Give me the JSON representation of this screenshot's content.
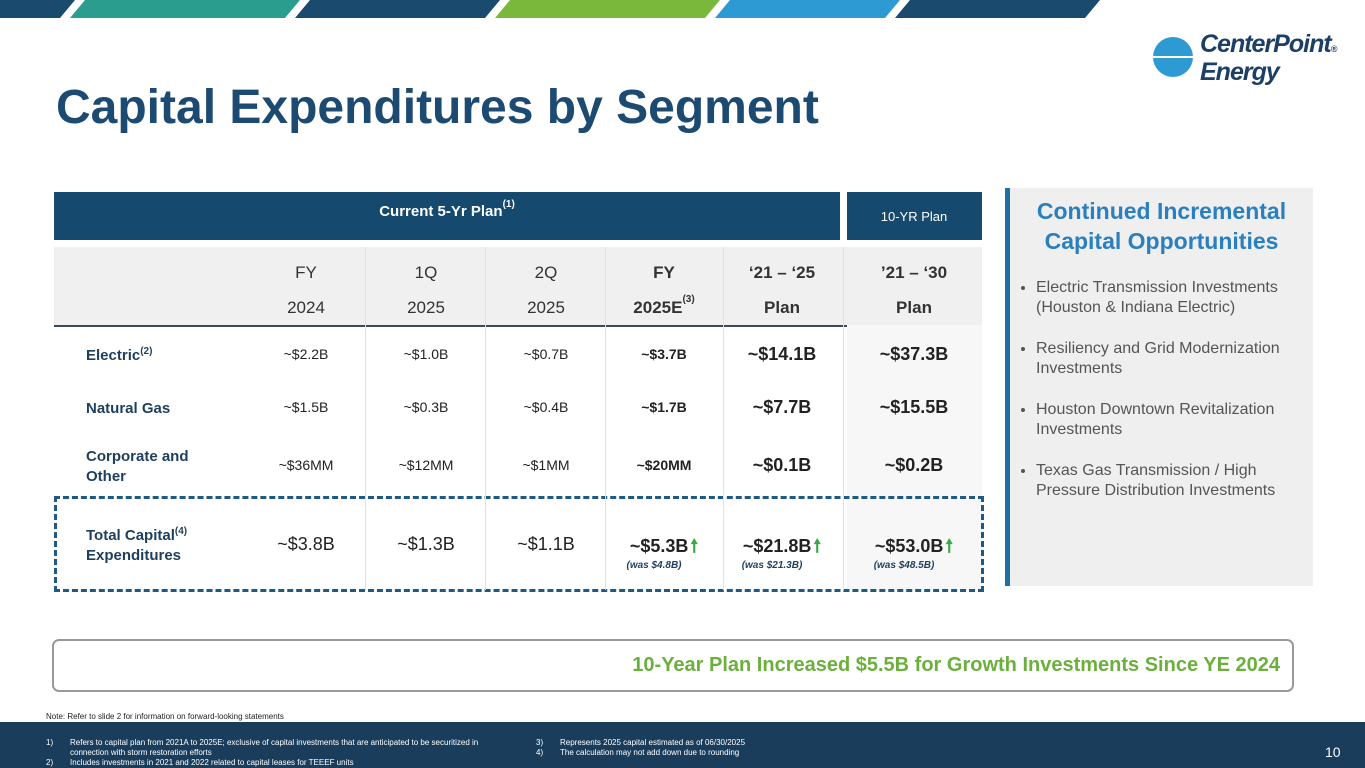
{
  "header": {
    "title": "Capital Expenditures by Segment"
  },
  "logo": {
    "line1": "CenterPoint",
    "line2": "Energy",
    "mark": "®"
  },
  "table": {
    "plan_header": {
      "text": "Current 5-Yr Plan",
      "note": "(1)"
    },
    "ten_year_header": "10-YR Plan",
    "columns": [
      {
        "line1": "FY",
        "line2": "2024"
      },
      {
        "line1": "1Q",
        "line2": "2025"
      },
      {
        "line1": "2Q",
        "line2": "2025"
      },
      {
        "line1": "FY",
        "line2": "2025E",
        "note": "(3)"
      },
      {
        "line1": "‘21 – ‘25",
        "line2": "Plan"
      },
      {
        "line1": "’21 – ‘30",
        "line2": "Plan"
      }
    ],
    "rows": [
      {
        "label": "Electric",
        "note": "(2)",
        "cells": [
          "~$2.2B",
          "~$1.0B",
          "~$0.7B",
          "~$3.7B",
          "~$14.1B",
          "~$37.3B"
        ]
      },
      {
        "label": "Natural Gas",
        "cells": [
          "~$1.5B",
          "~$0.3B",
          "~$0.4B",
          "~$1.7B",
          "~$7.7B",
          "~$15.5B"
        ]
      },
      {
        "label": "Corporate and Other",
        "cells": [
          "~$36MM",
          "~$12MM",
          "~$1MM",
          "~$20MM",
          "~$0.1B",
          "~$0.2B"
        ]
      },
      {
        "label": "Total Capital",
        "note": "(4)",
        "label2": "Expenditures",
        "cells": [
          "~$3.8B",
          "~$1.3B",
          "~$1.1B",
          "~$5.3B",
          "~$21.8B",
          "~$53.0B"
        ],
        "was": [
          null,
          null,
          null,
          "(was $4.8B)",
          "(was $21.3B)",
          "(was $48.5B)"
        ]
      }
    ]
  },
  "panel": {
    "title": "Continued Incremental Capital Opportunities",
    "bullets": [
      "Electric Transmission Investments (Houston & Indiana Electric)",
      "Resiliency and Grid Modernization Investments",
      "Houston Downtown Revitalization Investments",
      "Texas Gas Transmission / High Pressure Distribution Investments"
    ]
  },
  "callout": "10-Year Plan Increased $5.5B for Growth Investments Since YE 2024",
  "note": "Note: Refer to slide 2 for information on forward-looking statements",
  "footnotes": [
    {
      "num": "1)",
      "text": "Refers to capital plan from 2021A to 2025E; exclusive of capital investments that are anticipated to be securitized in connection with storm restoration efforts"
    },
    {
      "num": "2)",
      "text": "Includes investments in 2021 and 2022 related to capital leases for TEEEF units"
    },
    {
      "num": "3)",
      "text": "Represents 2025 capital estimated as of 06/30/2025"
    },
    {
      "num": "4)",
      "text": "The calculation may not add down due to rounding"
    }
  ],
  "page_number": "10"
}
